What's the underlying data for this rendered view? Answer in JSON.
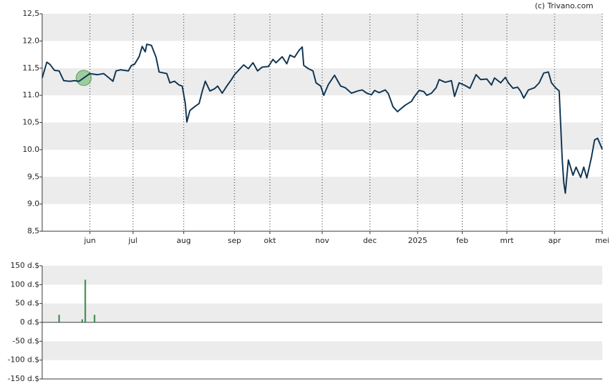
{
  "chart_data": [
    {
      "type": "line",
      "source": "(c) Trivano.com",
      "color": "#0f3553",
      "grid": true,
      "xlim": [
        0,
        364
      ],
      "ylim": [
        8.5,
        12.5
      ],
      "yticks": [
        {
          "value": 8.5,
          "label": "8,5"
        },
        {
          "value": 9,
          "label": "9.0"
        },
        {
          "value": 9.5,
          "label": "9,5"
        },
        {
          "value": 10,
          "label": "10.0"
        },
        {
          "value": 10.5,
          "label": "10,5"
        },
        {
          "value": 11,
          "label": "11.0"
        },
        {
          "value": 11.5,
          "label": "11,5"
        },
        {
          "value": 12,
          "label": "12.0"
        },
        {
          "value": 12.5,
          "label": "12,5"
        }
      ],
      "xticks": [
        {
          "value": 31,
          "label": "jun"
        },
        {
          "value": 59,
          "label": "jul"
        },
        {
          "value": 92,
          "label": "aug"
        },
        {
          "value": 125,
          "label": "sep"
        },
        {
          "value": 148,
          "label": "okt"
        },
        {
          "value": 182,
          "label": "nov"
        },
        {
          "value": 213,
          "label": "dec"
        },
        {
          "value": 244,
          "label": "2025"
        },
        {
          "value": 273,
          "label": "feb"
        },
        {
          "value": 302,
          "label": "mrt"
        },
        {
          "value": 333,
          "label": "apr"
        },
        {
          "value": 364,
          "label": "mei"
        }
      ],
      "x": [
        0,
        3,
        5,
        8,
        11,
        14,
        18,
        21,
        24,
        27,
        31,
        36,
        40,
        43,
        46,
        48,
        51,
        56,
        58,
        60,
        63,
        65,
        67,
        68,
        71,
        74,
        76,
        81,
        83,
        86,
        89,
        91,
        93,
        94,
        96,
        99,
        102,
        104,
        106,
        109,
        112,
        114,
        117,
        120,
        123,
        125,
        128,
        131,
        134,
        137,
        140,
        143,
        147,
        150,
        152,
        156,
        159,
        161,
        164,
        167,
        169,
        170,
        173,
        176,
        178,
        181,
        183,
        186,
        190,
        194,
        197,
        201,
        205,
        208,
        211,
        214,
        216,
        219,
        223,
        225,
        228,
        231,
        233,
        236,
        240,
        242,
        245,
        248,
        250,
        253,
        256,
        258,
        262,
        266,
        268,
        271,
        275,
        278,
        282,
        285,
        289,
        292,
        294,
        298,
        301,
        303,
        306,
        309,
        311,
        313,
        316,
        320,
        323,
        326,
        329,
        331,
        334,
        336,
        338,
        339,
        340,
        342,
        345,
        347,
        350,
        352,
        354,
        357,
        359,
        361,
        364
      ],
      "values": [
        11.32,
        11.61,
        11.57,
        11.46,
        11.45,
        11.27,
        11.26,
        11.27,
        11.26,
        11.32,
        11.4,
        11.38,
        11.4,
        11.33,
        11.26,
        11.45,
        11.47,
        11.45,
        11.55,
        11.57,
        11.71,
        11.9,
        11.8,
        11.94,
        11.92,
        11.7,
        11.43,
        11.4,
        11.23,
        11.26,
        11.19,
        11.17,
        10.85,
        10.51,
        10.72,
        10.79,
        10.85,
        11.07,
        11.26,
        11.08,
        11.12,
        11.17,
        11.04,
        11.17,
        11.29,
        11.38,
        11.47,
        11.56,
        11.49,
        11.6,
        11.45,
        11.52,
        11.53,
        11.66,
        11.6,
        11.71,
        11.58,
        11.74,
        11.7,
        11.83,
        11.89,
        11.55,
        11.49,
        11.45,
        11.23,
        11.17,
        11.0,
        11.2,
        11.37,
        11.17,
        11.14,
        11.04,
        11.08,
        11.1,
        11.04,
        11.01,
        11.09,
        11.05,
        11.1,
        11.03,
        10.79,
        10.7,
        10.75,
        10.82,
        10.89,
        10.98,
        11.09,
        11.07,
        11.0,
        11.04,
        11.14,
        11.29,
        11.24,
        11.27,
        10.98,
        11.23,
        11.18,
        11.13,
        11.38,
        11.29,
        11.3,
        11.19,
        11.32,
        11.23,
        11.33,
        11.23,
        11.13,
        11.15,
        11.07,
        10.95,
        11.1,
        11.14,
        11.23,
        11.41,
        11.43,
        11.23,
        11.13,
        11.08,
        9.83,
        9.39,
        9.2,
        9.81,
        9.53,
        9.68,
        9.49,
        9.68,
        9.48,
        9.86,
        10.18,
        10.21,
        10.01
      ]
    },
    {
      "type": "bar",
      "color": "#2e8540",
      "xlim": [
        0,
        364
      ],
      "ylim": [
        -150,
        150
      ],
      "yticks": [
        {
          "value": -150,
          "label": "-150 d.$"
        },
        {
          "value": -100,
          "label": "-100 d.$"
        },
        {
          "value": -50,
          "label": "-50 d.$"
        },
        {
          "value": 0,
          "label": "0 d.$"
        },
        {
          "value": 50,
          "label": "50 d.$"
        },
        {
          "value": 100,
          "label": "100 d.$"
        },
        {
          "value": 150,
          "label": "150 d.$"
        }
      ],
      "x": [
        11,
        26,
        28,
        34
      ],
      "values": [
        20,
        8,
        113,
        20
      ]
    }
  ]
}
